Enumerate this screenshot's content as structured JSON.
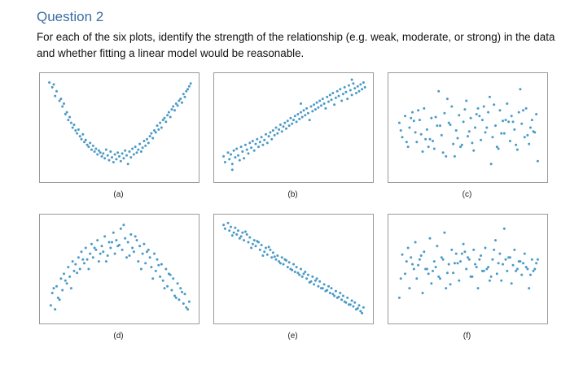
{
  "question": {
    "title": "Question 2",
    "text": "For each of the six plots, identify the strength of the relationship (e.g. weak, moderate, or strong) in the data and whether fitting a linear model would be reasonable."
  },
  "colors": {
    "point": "#4a9ac7",
    "frame": "#9a9a9a",
    "title": "#3a6da3"
  },
  "chart_data": [
    {
      "type": "scatter",
      "label": "(a)",
      "x": [
        0.02,
        0.04,
        0.05,
        0.06,
        0.07,
        0.09,
        0.1,
        0.11,
        0.12,
        0.13,
        0.14,
        0.15,
        0.16,
        0.17,
        0.18,
        0.19,
        0.2,
        0.21,
        0.22,
        0.23,
        0.24,
        0.25,
        0.26,
        0.27,
        0.28,
        0.29,
        0.3,
        0.31,
        0.32,
        0.33,
        0.34,
        0.35,
        0.36,
        0.37,
        0.38,
        0.39,
        0.4,
        0.41,
        0.42,
        0.43,
        0.44,
        0.45,
        0.46,
        0.47,
        0.48,
        0.49,
        0.5,
        0.51,
        0.52,
        0.53,
        0.54,
        0.55,
        0.56,
        0.57,
        0.58,
        0.59,
        0.6,
        0.61,
        0.62,
        0.63,
        0.64,
        0.65,
        0.66,
        0.67,
        0.68,
        0.69,
        0.7,
        0.71,
        0.72,
        0.73,
        0.74,
        0.75,
        0.76,
        0.77,
        0.78,
        0.79,
        0.8,
        0.81,
        0.82,
        0.83,
        0.84,
        0.85,
        0.86,
        0.87,
        0.88,
        0.89,
        0.9,
        0.91,
        0.92,
        0.93,
        0.94,
        0.95,
        0.96,
        0.97,
        0.98,
        0.99
      ],
      "y": [
        0.97,
        0.92,
        0.95,
        0.83,
        0.88,
        0.78,
        0.8,
        0.72,
        0.75,
        0.64,
        0.66,
        0.58,
        0.61,
        0.55,
        0.5,
        0.53,
        0.47,
        0.44,
        0.48,
        0.41,
        0.38,
        0.43,
        0.35,
        0.37,
        0.32,
        0.3,
        0.34,
        0.27,
        0.31,
        0.25,
        0.28,
        0.22,
        0.26,
        0.24,
        0.2,
        0.23,
        0.18,
        0.27,
        0.21,
        0.16,
        0.25,
        0.19,
        0.14,
        0.22,
        0.17,
        0.24,
        0.2,
        0.15,
        0.23,
        0.18,
        0.26,
        0.21,
        0.12,
        0.25,
        0.19,
        0.28,
        0.22,
        0.3,
        0.24,
        0.27,
        0.33,
        0.25,
        0.29,
        0.36,
        0.31,
        0.38,
        0.34,
        0.41,
        0.44,
        0.39,
        0.47,
        0.45,
        0.52,
        0.48,
        0.55,
        0.5,
        0.58,
        0.6,
        0.56,
        0.63,
        0.66,
        0.61,
        0.69,
        0.72,
        0.68,
        0.75,
        0.73,
        0.78,
        0.8,
        0.76,
        0.85,
        0.82,
        0.88,
        0.9,
        0.93,
        0.96
      ]
    },
    {
      "type": "scatter",
      "label": "(b)",
      "x": [
        0.02,
        0.03,
        0.05,
        0.06,
        0.07,
        0.08,
        0.09,
        0.1,
        0.11,
        0.12,
        0.13,
        0.14,
        0.15,
        0.16,
        0.17,
        0.18,
        0.19,
        0.2,
        0.21,
        0.22,
        0.23,
        0.24,
        0.25,
        0.26,
        0.27,
        0.28,
        0.29,
        0.3,
        0.31,
        0.32,
        0.33,
        0.34,
        0.35,
        0.36,
        0.37,
        0.38,
        0.39,
        0.4,
        0.41,
        0.42,
        0.43,
        0.44,
        0.45,
        0.46,
        0.47,
        0.48,
        0.49,
        0.5,
        0.51,
        0.52,
        0.53,
        0.54,
        0.55,
        0.56,
        0.57,
        0.58,
        0.59,
        0.6,
        0.61,
        0.62,
        0.63,
        0.64,
        0.65,
        0.66,
        0.67,
        0.68,
        0.69,
        0.7,
        0.71,
        0.72,
        0.73,
        0.74,
        0.75,
        0.76,
        0.77,
        0.78,
        0.79,
        0.8,
        0.81,
        0.82,
        0.83,
        0.84,
        0.85,
        0.86,
        0.87,
        0.88,
        0.89,
        0.9,
        0.91,
        0.92,
        0.93,
        0.94,
        0.95,
        0.96,
        0.97,
        0.98,
        0.99,
        0.08,
        0.55,
        0.9
      ],
      "y": [
        0.2,
        0.14,
        0.24,
        0.17,
        0.22,
        0.12,
        0.26,
        0.19,
        0.28,
        0.21,
        0.16,
        0.3,
        0.25,
        0.18,
        0.32,
        0.27,
        0.23,
        0.34,
        0.29,
        0.36,
        0.26,
        0.33,
        0.38,
        0.3,
        0.35,
        0.4,
        0.32,
        0.37,
        0.43,
        0.34,
        0.41,
        0.45,
        0.38,
        0.47,
        0.42,
        0.5,
        0.44,
        0.48,
        0.53,
        0.46,
        0.51,
        0.55,
        0.49,
        0.57,
        0.52,
        0.6,
        0.54,
        0.58,
        0.62,
        0.56,
        0.64,
        0.59,
        0.66,
        0.61,
        0.68,
        0.63,
        0.7,
        0.65,
        0.58,
        0.72,
        0.67,
        0.74,
        0.69,
        0.76,
        0.71,
        0.78,
        0.73,
        0.8,
        0.75,
        0.7,
        0.82,
        0.77,
        0.84,
        0.79,
        0.86,
        0.74,
        0.81,
        0.88,
        0.83,
        0.9,
        0.78,
        0.85,
        0.92,
        0.87,
        0.8,
        0.94,
        0.89,
        0.84,
        0.96,
        0.91,
        0.86,
        0.93,
        0.88,
        0.95,
        0.9,
        0.97,
        0.92,
        0.06,
        0.75,
        1.0
      ]
    },
    {
      "type": "scatter",
      "label": "(c)",
      "x": [
        0.03,
        0.05,
        0.07,
        0.09,
        0.1,
        0.12,
        0.14,
        0.15,
        0.17,
        0.19,
        0.2,
        0.22,
        0.24,
        0.25,
        0.27,
        0.29,
        0.3,
        0.32,
        0.34,
        0.35,
        0.37,
        0.39,
        0.4,
        0.42,
        0.44,
        0.45,
        0.47,
        0.49,
        0.5,
        0.52,
        0.54,
        0.55,
        0.57,
        0.59,
        0.6,
        0.62,
        0.64,
        0.65,
        0.67,
        0.69,
        0.7,
        0.72,
        0.74,
        0.75,
        0.77,
        0.79,
        0.8,
        0.82,
        0.84,
        0.85,
        0.87,
        0.89,
        0.9,
        0.92,
        0.94,
        0.95,
        0.97,
        0.04,
        0.08,
        0.13,
        0.18,
        0.23,
        0.28,
        0.33,
        0.38,
        0.43,
        0.48,
        0.53,
        0.58,
        0.63,
        0.68,
        0.73,
        0.78,
        0.83,
        0.88,
        0.93,
        0.98,
        0.11,
        0.21,
        0.31,
        0.41,
        0.51,
        0.61,
        0.71,
        0.81,
        0.91,
        0.36,
        0.46,
        0.56,
        0.66,
        0.76,
        0.86,
        0.96,
        0.16,
        0.26
      ],
      "y": [
        0.55,
        0.4,
        0.62,
        0.3,
        0.5,
        0.66,
        0.45,
        0.35,
        0.58,
        0.25,
        0.7,
        0.48,
        0.38,
        0.6,
        0.28,
        0.52,
        0.88,
        0.42,
        0.65,
        0.2,
        0.55,
        0.72,
        0.33,
        0.47,
        0.63,
        0.3,
        0.56,
        0.78,
        0.41,
        0.6,
        0.26,
        0.5,
        0.7,
        0.37,
        0.58,
        0.45,
        0.66,
        0.82,
        0.4,
        0.52,
        0.3,
        0.68,
        0.57,
        0.44,
        0.75,
        0.36,
        0.62,
        0.48,
        0.27,
        0.66,
        0.54,
        0.4,
        0.7,
        0.33,
        0.58,
        0.46,
        0.64,
        0.47,
        0.35,
        0.57,
        0.43,
        0.3,
        0.61,
        0.24,
        0.53,
        0.39,
        0.69,
        0.34,
        0.62,
        0.5,
        0.74,
        0.44,
        0.56,
        0.32,
        0.68,
        0.5,
        0.15,
        0.6,
        0.38,
        0.52,
        0.2,
        0.46,
        0.72,
        0.28,
        0.56,
        0.42,
        0.8,
        0.32,
        0.64,
        0.12,
        0.58,
        0.9,
        0.45,
        0.68,
        0.36
      ]
    },
    {
      "type": "scatter",
      "label": "(d)",
      "x": [
        0.03,
        0.04,
        0.06,
        0.07,
        0.08,
        0.1,
        0.11,
        0.12,
        0.14,
        0.15,
        0.16,
        0.18,
        0.19,
        0.2,
        0.22,
        0.23,
        0.24,
        0.26,
        0.27,
        0.28,
        0.3,
        0.31,
        0.32,
        0.34,
        0.35,
        0.36,
        0.38,
        0.39,
        0.4,
        0.42,
        0.43,
        0.44,
        0.46,
        0.47,
        0.48,
        0.5,
        0.51,
        0.52,
        0.54,
        0.55,
        0.56,
        0.58,
        0.59,
        0.6,
        0.62,
        0.63,
        0.64,
        0.66,
        0.67,
        0.68,
        0.7,
        0.71,
        0.72,
        0.74,
        0.75,
        0.76,
        0.78,
        0.79,
        0.8,
        0.82,
        0.83,
        0.84,
        0.86,
        0.87,
        0.88,
        0.9,
        0.91,
        0.92,
        0.94,
        0.95,
        0.96,
        0.98,
        0.05,
        0.09,
        0.13,
        0.17,
        0.21,
        0.25,
        0.29,
        0.33,
        0.37,
        0.41,
        0.45,
        0.49,
        0.53,
        0.57,
        0.61,
        0.65,
        0.69,
        0.73,
        0.77,
        0.81,
        0.85,
        0.89,
        0.93,
        0.97
      ],
      "y": [
        0.12,
        0.25,
        0.08,
        0.32,
        0.2,
        0.4,
        0.28,
        0.45,
        0.35,
        0.52,
        0.42,
        0.58,
        0.48,
        0.55,
        0.62,
        0.5,
        0.68,
        0.56,
        0.72,
        0.6,
        0.66,
        0.76,
        0.62,
        0.7,
        0.8,
        0.58,
        0.74,
        0.68,
        0.84,
        0.64,
        0.78,
        0.72,
        0.88,
        0.66,
        0.8,
        0.75,
        0.92,
        0.7,
        0.82,
        0.62,
        0.78,
        0.86,
        0.72,
        0.68,
        0.8,
        0.58,
        0.74,
        0.66,
        0.76,
        0.56,
        0.7,
        0.62,
        0.52,
        0.66,
        0.48,
        0.6,
        0.42,
        0.55,
        0.38,
        0.5,
        0.32,
        0.45,
        0.28,
        0.4,
        0.22,
        0.35,
        0.18,
        0.3,
        0.14,
        0.24,
        0.1,
        0.16,
        0.3,
        0.18,
        0.38,
        0.3,
        0.46,
        0.6,
        0.5,
        0.72,
        0.66,
        0.58,
        0.78,
        0.74,
        0.96,
        0.64,
        0.84,
        0.5,
        0.68,
        0.4,
        0.54,
        0.3,
        0.44,
        0.2,
        0.26,
        0.08
      ]
    },
    {
      "type": "scatter",
      "label": "(e)",
      "x": [
        0.02,
        0.03,
        0.05,
        0.06,
        0.07,
        0.09,
        0.1,
        0.11,
        0.12,
        0.14,
        0.15,
        0.16,
        0.18,
        0.19,
        0.2,
        0.22,
        0.23,
        0.24,
        0.26,
        0.27,
        0.28,
        0.3,
        0.31,
        0.32,
        0.34,
        0.35,
        0.36,
        0.38,
        0.39,
        0.4,
        0.42,
        0.43,
        0.44,
        0.46,
        0.47,
        0.48,
        0.5,
        0.51,
        0.52,
        0.54,
        0.55,
        0.56,
        0.58,
        0.59,
        0.6,
        0.62,
        0.63,
        0.64,
        0.66,
        0.67,
        0.68,
        0.7,
        0.71,
        0.72,
        0.74,
        0.75,
        0.76,
        0.78,
        0.79,
        0.8,
        0.82,
        0.83,
        0.84,
        0.86,
        0.87,
        0.88,
        0.9,
        0.91,
        0.92,
        0.94,
        0.95,
        0.96,
        0.98,
        0.08,
        0.13,
        0.17,
        0.21,
        0.25,
        0.29,
        0.33,
        0.37,
        0.41,
        0.45,
        0.49,
        0.53,
        0.57,
        0.61,
        0.65,
        0.69,
        0.73,
        0.77,
        0.81,
        0.85,
        0.89,
        0.93,
        0.97
      ],
      "y": [
        0.96,
        0.92,
        0.98,
        0.9,
        0.94,
        0.88,
        0.93,
        0.86,
        0.9,
        0.84,
        0.88,
        0.8,
        0.86,
        0.78,
        0.83,
        0.76,
        0.8,
        0.74,
        0.78,
        0.7,
        0.75,
        0.68,
        0.72,
        0.65,
        0.7,
        0.62,
        0.67,
        0.6,
        0.64,
        0.58,
        0.62,
        0.55,
        0.6,
        0.52,
        0.57,
        0.5,
        0.55,
        0.47,
        0.52,
        0.44,
        0.5,
        0.42,
        0.47,
        0.4,
        0.44,
        0.37,
        0.42,
        0.34,
        0.4,
        0.32,
        0.37,
        0.3,
        0.34,
        0.27,
        0.32,
        0.25,
        0.3,
        0.22,
        0.27,
        0.2,
        0.25,
        0.18,
        0.22,
        0.15,
        0.2,
        0.13,
        0.17,
        0.11,
        0.15,
        0.09,
        0.12,
        0.06,
        0.1,
        0.85,
        0.82,
        0.89,
        0.72,
        0.79,
        0.64,
        0.73,
        0.63,
        0.56,
        0.59,
        0.49,
        0.46,
        0.45,
        0.36,
        0.38,
        0.3,
        0.28,
        0.24,
        0.21,
        0.16,
        0.13,
        0.08,
        0.04
      ]
    },
    {
      "type": "scatter",
      "label": "(f)",
      "x": [
        0.03,
        0.05,
        0.07,
        0.09,
        0.1,
        0.12,
        0.14,
        0.15,
        0.17,
        0.19,
        0.2,
        0.22,
        0.24,
        0.25,
        0.27,
        0.29,
        0.3,
        0.32,
        0.34,
        0.35,
        0.37,
        0.39,
        0.4,
        0.42,
        0.44,
        0.45,
        0.47,
        0.49,
        0.5,
        0.52,
        0.54,
        0.55,
        0.57,
        0.59,
        0.6,
        0.62,
        0.64,
        0.65,
        0.67,
        0.69,
        0.7,
        0.72,
        0.74,
        0.75,
        0.77,
        0.79,
        0.8,
        0.82,
        0.84,
        0.85,
        0.87,
        0.89,
        0.9,
        0.92,
        0.94,
        0.95,
        0.97,
        0.04,
        0.08,
        0.13,
        0.18,
        0.23,
        0.28,
        0.33,
        0.38,
        0.43,
        0.48,
        0.53,
        0.58,
        0.63,
        0.68,
        0.73,
        0.78,
        0.83,
        0.88,
        0.93,
        0.98,
        0.11,
        0.21,
        0.31,
        0.41,
        0.51,
        0.61,
        0.71,
        0.81,
        0.91,
        0.36,
        0.46,
        0.56,
        0.66,
        0.76,
        0.86,
        0.96,
        0.16,
        0.26
      ],
      "y": [
        0.2,
        0.65,
        0.45,
        0.72,
        0.3,
        0.55,
        0.78,
        0.4,
        0.6,
        0.25,
        0.68,
        0.5,
        0.82,
        0.35,
        0.58,
        0.74,
        0.42,
        0.62,
        0.88,
        0.3,
        0.55,
        0.7,
        0.46,
        0.66,
        0.38,
        0.58,
        0.76,
        0.5,
        0.62,
        0.42,
        0.7,
        0.55,
        0.3,
        0.64,
        0.48,
        0.72,
        0.52,
        0.38,
        0.6,
        0.8,
        0.45,
        0.66,
        0.55,
        0.92,
        0.48,
        0.62,
        0.35,
        0.7,
        0.5,
        0.58,
        0.44,
        0.66,
        0.52,
        0.3,
        0.6,
        0.48,
        0.56,
        0.4,
        0.58,
        0.5,
        0.64,
        0.45,
        0.52,
        0.6,
        0.34,
        0.56,
        0.68,
        0.42,
        0.6,
        0.5,
        0.7,
        0.38,
        0.62,
        0.48,
        0.56,
        0.44,
        0.6,
        0.62,
        0.5,
        0.4,
        0.56,
        0.6,
        0.48,
        0.56,
        0.54,
        0.5,
        0.46,
        0.66,
        0.52,
        0.42,
        0.6,
        0.58,
        0.5,
        0.54,
        0.48
      ]
    }
  ]
}
